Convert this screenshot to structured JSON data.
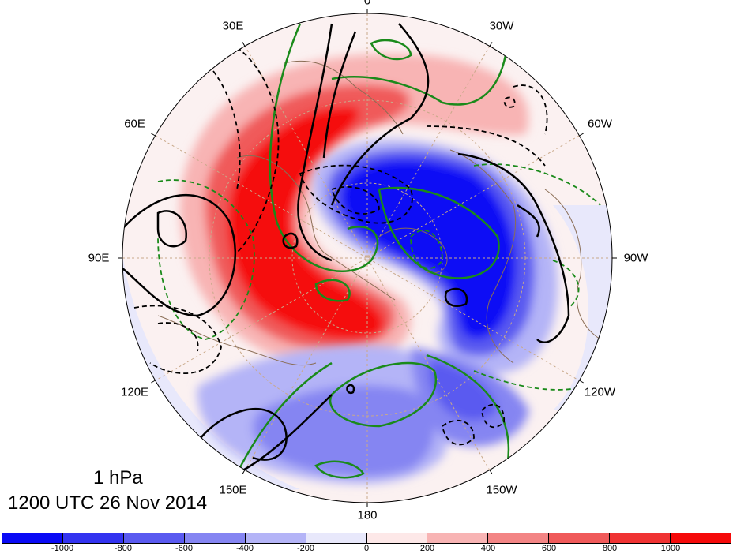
{
  "figure": {
    "level_label": "1 hPa",
    "time_label": "1200 UTC 26 Nov 2014"
  },
  "longitude_labels": [
    {
      "deg": 0,
      "text": "0"
    },
    {
      "deg": 30,
      "text": "30E"
    },
    {
      "deg": 60,
      "text": "60E"
    },
    {
      "deg": 90,
      "text": "90E"
    },
    {
      "deg": 120,
      "text": "120E"
    },
    {
      "deg": 150,
      "text": "150E"
    },
    {
      "deg": 180,
      "text": "180"
    },
    {
      "deg": -150,
      "text": "150W"
    },
    {
      "deg": -120,
      "text": "120W"
    },
    {
      "deg": -90,
      "text": "90W"
    },
    {
      "deg": -60,
      "text": "60W"
    },
    {
      "deg": -30,
      "text": "30W"
    }
  ],
  "colorbar": {
    "ticks": [
      "-1000",
      "-800",
      "-600",
      "-400",
      "-200",
      "0",
      "200",
      "400",
      "600",
      "800",
      "1000"
    ],
    "colors": [
      "#0a0af5",
      "#3333f0",
      "#5a5af0",
      "#8585f2",
      "#b4b4f7",
      "#e8e8fb",
      "#fde8e8",
      "#f8b4b4",
      "#f38585",
      "#f05a5a",
      "#f03333",
      "#f50a0a"
    ]
  }
}
